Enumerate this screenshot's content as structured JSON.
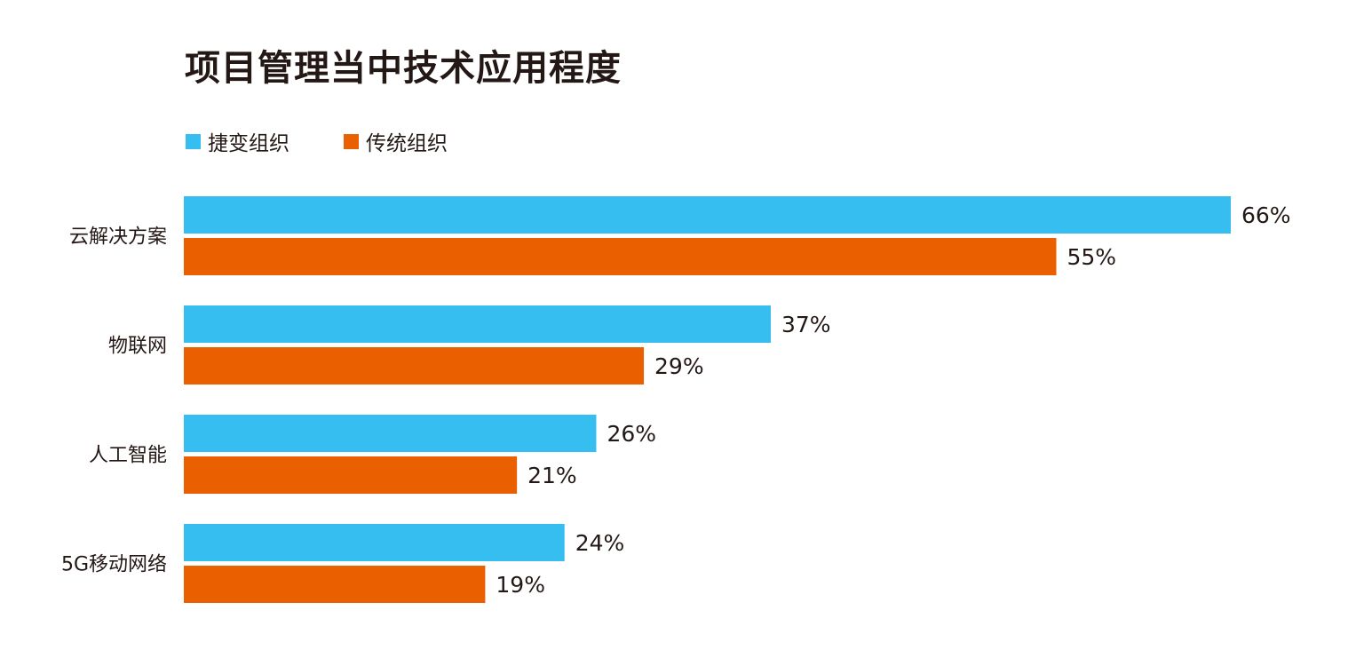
{
  "chart_data": {
    "type": "bar",
    "orientation": "horizontal",
    "title": "项目管理当中技术应用程度",
    "categories": [
      "云解决方案",
      "物联网",
      "人工智能",
      "5G移动网络"
    ],
    "series": [
      {
        "name": "捷变组织",
        "color": "#37BEF0",
        "values": [
          66,
          37,
          26,
          24
        ]
      },
      {
        "name": "传统组织",
        "color": "#EA6000",
        "values": [
          55,
          29,
          21,
          19
        ]
      }
    ],
    "value_suffix": "%",
    "xlim": [
      0,
      66
    ],
    "grid": false,
    "legend_position": "top-left"
  }
}
